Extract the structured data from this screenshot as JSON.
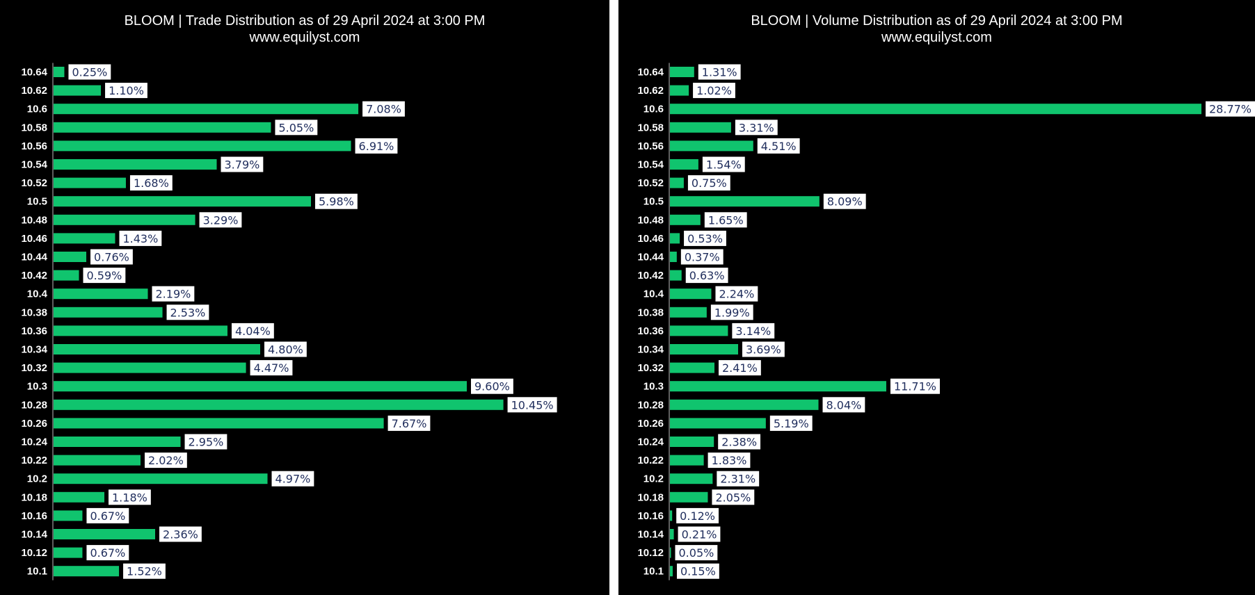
{
  "colors": {
    "bar": "#10c46e",
    "background": "#000000",
    "label_text": "#1f2d5c",
    "label_box": "#ffffff",
    "axis": "#bbbbbb"
  },
  "chart_data": [
    {
      "type": "bar",
      "orientation": "horizontal",
      "title": "BLOOM | Trade Distribution as of 29 April 2024 at 3:00 PM",
      "subtitle": "www.equilyst.com",
      "categories": [
        "10.64",
        "10.62",
        "10.6",
        "10.58",
        "10.56",
        "10.54",
        "10.52",
        "10.5",
        "10.48",
        "10.46",
        "10.44",
        "10.42",
        "10.4",
        "10.38",
        "10.36",
        "10.34",
        "10.32",
        "10.3",
        "10.28",
        "10.26",
        "10.24",
        "10.22",
        "10.2",
        "10.18",
        "10.16",
        "10.14",
        "10.12",
        "10.1"
      ],
      "values": [
        0.25,
        1.1,
        7.08,
        5.05,
        6.91,
        3.79,
        1.68,
        5.98,
        3.29,
        1.43,
        0.76,
        0.59,
        2.19,
        2.53,
        4.04,
        4.8,
        4.47,
        9.6,
        10.45,
        7.67,
        2.95,
        2.02,
        4.97,
        1.18,
        0.67,
        2.36,
        0.67,
        1.52
      ],
      "labels": [
        "0.25%",
        "1.10%",
        "7.08%",
        "5.05%",
        "6.91%",
        "3.79%",
        "1.68%",
        "5.98%",
        "3.29%",
        "1.43%",
        "0.76%",
        "0.59%",
        "2.19%",
        "2.53%",
        "4.04%",
        "4.80%",
        "4.47%",
        "9.60%",
        "10.45%",
        "7.67%",
        "2.95%",
        "2.02%",
        "4.97%",
        "1.18%",
        "0.67%",
        "2.36%",
        "0.67%",
        "1.52%"
      ],
      "xlim": [
        0,
        16
      ]
    },
    {
      "type": "bar",
      "orientation": "horizontal",
      "title": "BLOOM | Volume Distribution as of 29 April 2024 at 3:00 PM",
      "subtitle": "www.equilyst.com",
      "categories": [
        "10.64",
        "10.62",
        "10.6",
        "10.58",
        "10.56",
        "10.54",
        "10.52",
        "10.5",
        "10.48",
        "10.46",
        "10.44",
        "10.42",
        "10.4",
        "10.38",
        "10.36",
        "10.34",
        "10.32",
        "10.3",
        "10.28",
        "10.26",
        "10.24",
        "10.22",
        "10.2",
        "10.18",
        "10.16",
        "10.14",
        "10.12",
        "10.1"
      ],
      "values": [
        1.31,
        1.02,
        28.77,
        3.31,
        4.51,
        1.54,
        0.75,
        8.09,
        1.65,
        0.53,
        0.37,
        0.63,
        2.24,
        1.99,
        3.14,
        3.69,
        2.41,
        11.71,
        8.04,
        5.19,
        2.38,
        1.83,
        2.31,
        2.05,
        0.12,
        0.21,
        0.05,
        0.15
      ],
      "labels": [
        "1.31%",
        "1.02%",
        "28.77%",
        "3.31%",
        "4.51%",
        "1.54%",
        "0.75%",
        "8.09%",
        "1.65%",
        "0.53%",
        "0.37%",
        "0.63%",
        "2.24%",
        "1.99%",
        "3.14%",
        "3.69%",
        "2.41%",
        "11.71%",
        "8.04%",
        "5.19%",
        "2.38%",
        "1.83%",
        "2.31%",
        "2.05%",
        "0.12%",
        "0.21%",
        "0.05%",
        "0.15%"
      ],
      "xlim": [
        0,
        36
      ]
    }
  ]
}
